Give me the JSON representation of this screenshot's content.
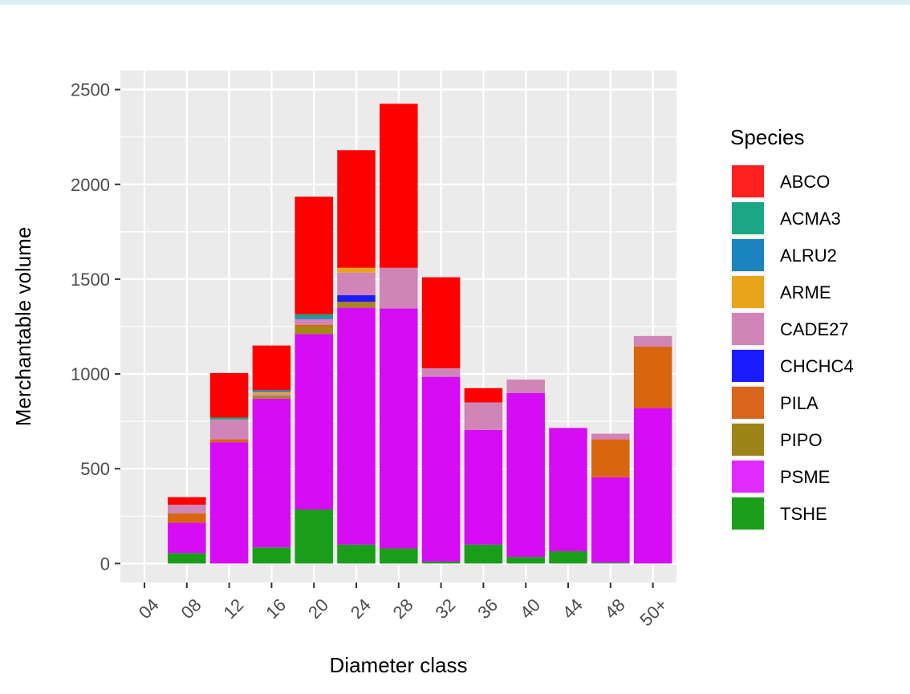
{
  "chart_data": {
    "type": "bar",
    "stacked": true,
    "xlabel": "Diameter class",
    "ylabel": "Merchantable volume",
    "ylim": [
      -100,
      2600
    ],
    "yticks": [
      0,
      500,
      1000,
      1500,
      2000,
      2500
    ],
    "categories": [
      "04",
      "08",
      "12",
      "16",
      "20",
      "24",
      "28",
      "32",
      "36",
      "40",
      "44",
      "48",
      "50+"
    ],
    "legend": {
      "title": "Species",
      "position": "right"
    },
    "grid": true,
    "series": [
      {
        "name": "TSHE",
        "color": "#1a9e1a",
        "values": [
          0,
          55,
          0,
          85,
          285,
          100,
          80,
          10,
          100,
          35,
          65,
          5,
          0
        ]
      },
      {
        "name": "PSME",
        "color": "#d60cf5",
        "values": [
          0,
          160,
          640,
          785,
          925,
          1250,
          1265,
          975,
          605,
          865,
          650,
          450,
          820
        ]
      },
      {
        "name": "PIPO",
        "color": "#a38a17",
        "values": [
          0,
          0,
          0,
          15,
          40,
          25,
          0,
          0,
          0,
          0,
          0,
          0,
          0
        ]
      },
      {
        "name": "PILA",
        "color": "#d9660f",
        "values": [
          0,
          50,
          15,
          0,
          10,
          5,
          0,
          0,
          0,
          0,
          0,
          200,
          325
        ]
      },
      {
        "name": "CHCHC4",
        "color": "#1b1bf5",
        "values": [
          0,
          0,
          0,
          0,
          0,
          35,
          0,
          0,
          0,
          0,
          0,
          0,
          0
        ]
      },
      {
        "name": "CADE27",
        "color": "#d084b8",
        "values": [
          0,
          45,
          105,
          10,
          30,
          120,
          215,
          45,
          145,
          70,
          0,
          30,
          55
        ]
      },
      {
        "name": "ARME",
        "color": "#e8a51c",
        "values": [
          0,
          0,
          0,
          10,
          0,
          25,
          0,
          0,
          0,
          0,
          0,
          0,
          0
        ]
      },
      {
        "name": "ALRU2",
        "color": "#1b83bf",
        "values": [
          0,
          0,
          0,
          10,
          10,
          0,
          0,
          0,
          0,
          0,
          0,
          0,
          0
        ]
      },
      {
        "name": "ACMA3",
        "color": "#1aa07a",
        "values": [
          0,
          0,
          10,
          0,
          15,
          0,
          0,
          0,
          0,
          0,
          0,
          0,
          0
        ]
      },
      {
        "name": "ABCO",
        "color": "#ff0000",
        "values": [
          0,
          40,
          235,
          235,
          620,
          620,
          865,
          480,
          75,
          0,
          0,
          0,
          0
        ]
      }
    ],
    "legend_order": [
      "ABCO",
      "ACMA3",
      "ALRU2",
      "ARME",
      "CADE27",
      "CHCHC4",
      "PILA",
      "PIPO",
      "PSME",
      "TSHE"
    ],
    "legend_colors": {
      "ABCO": "#ff1f1f",
      "ACMA3": "#1ba685",
      "ALRU2": "#1b83bf",
      "ARME": "#e8a51c",
      "CADE27": "#d084b8",
      "CHCHC4": "#1b1bff",
      "PILA": "#d9661c",
      "PIPO": "#9c8418",
      "PSME": "#df2bff",
      "TSHE": "#1a9e1a"
    },
    "panel_background": "#ebebeb",
    "grid_color": "#ffffff"
  }
}
